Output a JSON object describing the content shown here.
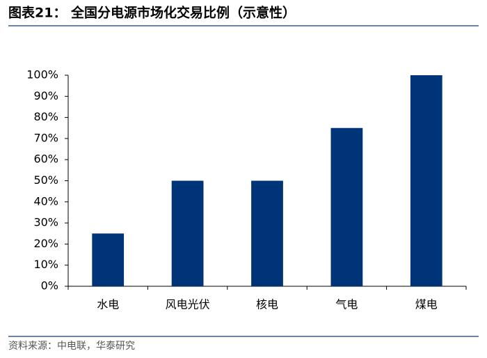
{
  "chart_data": {
    "type": "bar",
    "title": "图表21：  全国分电源市场化交易比例（示意性）",
    "source": "资料来源：中电联，华泰研究",
    "categories": [
      "水电",
      "风电光伏",
      "核电",
      "气电",
      "煤电"
    ],
    "values": [
      25,
      50,
      50,
      75,
      100
    ],
    "color": "#003478",
    "ylim": [
      0,
      100
    ],
    "yticks": [
      {
        "value": 0,
        "label": "0%"
      },
      {
        "value": 10,
        "label": "10%"
      },
      {
        "value": 20,
        "label": "20%"
      },
      {
        "value": 30,
        "label": "30%"
      },
      {
        "value": 40,
        "label": "40%"
      },
      {
        "value": 50,
        "label": "50%"
      },
      {
        "value": 60,
        "label": "60%"
      },
      {
        "value": 70,
        "label": "70%"
      },
      {
        "value": 80,
        "label": "80%"
      },
      {
        "value": 90,
        "label": "90%"
      },
      {
        "value": 100,
        "label": "100%"
      }
    ],
    "grid": false
  }
}
